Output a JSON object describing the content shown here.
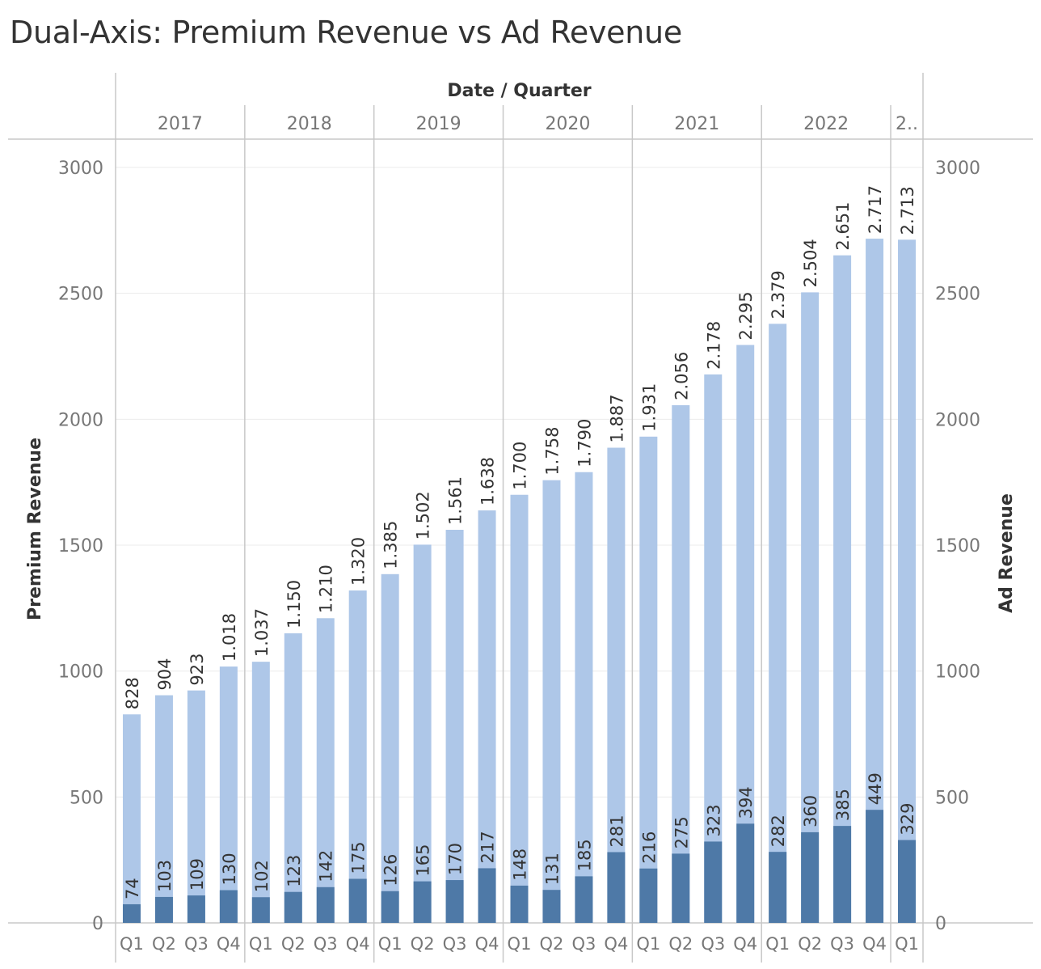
{
  "title": "Dual-Axis: Premium Revenue vs Ad Revenue",
  "colors": {
    "premium": "#aec7e8",
    "ad": "#4e79a7",
    "grid": "#ebebeb",
    "axis": "#c8c8c8",
    "text": "#333333",
    "muted": "#777777"
  },
  "chart_data": {
    "type": "bar",
    "title": "Dual-Axis: Premium Revenue vs Ad Revenue",
    "column_header": "Date / Quarter",
    "years": [
      {
        "label": "2017",
        "count": 4
      },
      {
        "label": "2018",
        "count": 4
      },
      {
        "label": "2019",
        "count": 4
      },
      {
        "label": "2020",
        "count": 4
      },
      {
        "label": "2021",
        "count": 4
      },
      {
        "label": "2022",
        "count": 4
      },
      {
        "label": "2..",
        "count": 1
      }
    ],
    "categories": [
      "Q1",
      "Q2",
      "Q3",
      "Q4",
      "Q1",
      "Q2",
      "Q3",
      "Q4",
      "Q1",
      "Q2",
      "Q3",
      "Q4",
      "Q1",
      "Q2",
      "Q3",
      "Q4",
      "Q1",
      "Q2",
      "Q3",
      "Q4",
      "Q1",
      "Q2",
      "Q3",
      "Q4",
      "Q1"
    ],
    "series": [
      {
        "name": "Premium Revenue",
        "axis": "left",
        "values": [
          828,
          904,
          923,
          1018,
          1037,
          1150,
          1210,
          1320,
          1385,
          1502,
          1561,
          1638,
          1700,
          1758,
          1790,
          1887,
          1931,
          2056,
          2178,
          2295,
          2379,
          2504,
          2651,
          2717,
          2713
        ],
        "labels": [
          "828",
          "904",
          "923",
          "1.018",
          "1.037",
          "1.150",
          "1.210",
          "1.320",
          "1.385",
          "1.502",
          "1.561",
          "1.638",
          "1.700",
          "1.758",
          "1.790",
          "1.887",
          "1.931",
          "2.056",
          "2.178",
          "2.295",
          "2.379",
          "2.504",
          "2.651",
          "2.717",
          "2.713"
        ]
      },
      {
        "name": "Ad Revenue",
        "axis": "right",
        "values": [
          74,
          103,
          109,
          130,
          102,
          123,
          142,
          175,
          126,
          165,
          170,
          217,
          148,
          131,
          185,
          281,
          216,
          275,
          323,
          394,
          282,
          360,
          385,
          449,
          329
        ],
        "labels": [
          "74",
          "103",
          "109",
          "130",
          "102",
          "123",
          "142",
          "175",
          "126",
          "165",
          "170",
          "217",
          "148",
          "131",
          "185",
          "281",
          "216",
          "275",
          "323",
          "394",
          "282",
          "360",
          "385",
          "449",
          "329"
        ]
      }
    ],
    "ylabel_left": "Premium Revenue",
    "ylabel_right": "Ad Revenue",
    "ylim_left": [
      0,
      3000
    ],
    "ylim_right": [
      0,
      3000
    ],
    "yticks": [
      0,
      500,
      1000,
      1500,
      2000,
      2500,
      3000
    ],
    "ytick_labels": [
      "0",
      "500",
      "1000",
      "1500",
      "2000",
      "2500",
      "3000"
    ],
    "grid": true,
    "legend": "none"
  }
}
